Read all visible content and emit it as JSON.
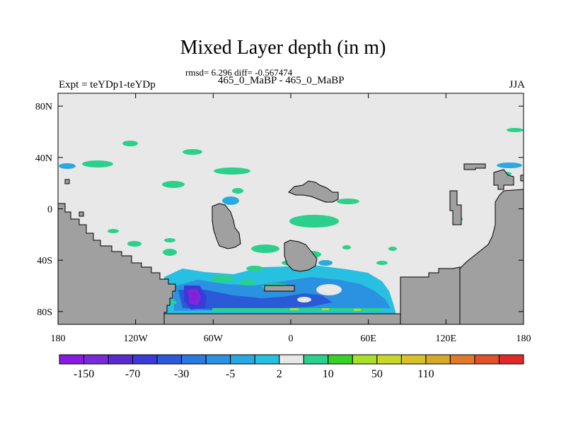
{
  "title": "Mixed Layer depth (in m)",
  "stats": "rmsd= 6.296 diff= -0.567474",
  "experiment_label": "Expt = teYDp1-teYDp",
  "experiment_title": "465_0_MaBP - 465_0_MaBP",
  "season": "JJA",
  "map": {
    "lon_range": [
      -180,
      180
    ],
    "lat_range": [
      -90,
      90
    ],
    "lat_ticks": [
      {
        "value": 80,
        "label": "80N"
      },
      {
        "value": 40,
        "label": "40N"
      },
      {
        "value": 0,
        "label": "0"
      },
      {
        "value": -40,
        "label": "40S"
      },
      {
        "value": -80,
        "label": "80S"
      }
    ],
    "lon_ticks": [
      {
        "value": -180,
        "label": "180"
      },
      {
        "value": -120,
        "label": "120W"
      },
      {
        "value": -60,
        "label": "60W"
      },
      {
        "value": 0,
        "label": "0"
      },
      {
        "value": 60,
        "label": "60E"
      },
      {
        "value": 120,
        "label": "120E"
      },
      {
        "value": 180,
        "label": "180"
      }
    ],
    "ocean_color": "#e8e8e8",
    "land_color": "#a0a0a0"
  },
  "colorbar": {
    "colors": [
      "#8a1ae0",
      "#7a2ad8",
      "#5a2ad0",
      "#3a3ad8",
      "#2a5ad8",
      "#2a7ae0",
      "#2a92e0",
      "#28aae0",
      "#28c0e0",
      "#e8e8e8",
      "#2ad08c",
      "#3ad02a",
      "#a8e02a",
      "#c8d82a",
      "#d8c02a",
      "#d8a82a",
      "#e07a2a",
      "#e0502a",
      "#e02a2a"
    ],
    "labels": [
      {
        "text": "-150",
        "boundary": 1
      },
      {
        "text": "-70",
        "boundary": 3
      },
      {
        "text": "-30",
        "boundary": 5
      },
      {
        "text": "-5",
        "boundary": 7
      },
      {
        "text": "2",
        "boundary": 9
      },
      {
        "text": "10",
        "boundary": 11
      },
      {
        "text": "50",
        "boundary": 13
      },
      {
        "text": "110",
        "boundary": 15
      }
    ]
  }
}
